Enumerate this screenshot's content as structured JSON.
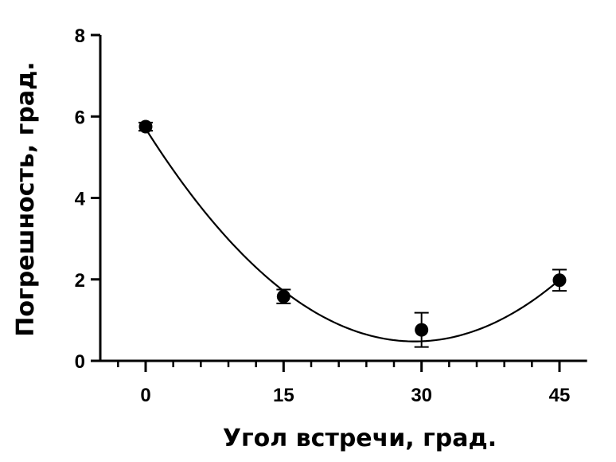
{
  "chart_data": {
    "type": "scatter",
    "title": "",
    "xlabel": "Угол встречи, град.",
    "ylabel": "Погрешность, град.",
    "xlim": [
      -5,
      48
    ],
    "ylim": [
      0,
      8
    ],
    "x_ticks": [
      0,
      15,
      30,
      45
    ],
    "x_tick_labels": [
      "0",
      "15",
      "30",
      "45"
    ],
    "x_minor_step": 3,
    "y_ticks": [
      0,
      2,
      4,
      6,
      8
    ],
    "y_tick_labels": [
      "0",
      "2",
      "4",
      "6",
      "8"
    ],
    "grid": false,
    "legend": "none",
    "colors": {
      "marker": "#000000",
      "line": "#000000"
    },
    "series": [
      {
        "points": [
          {
            "x": 0,
            "y": 5.75,
            "err": 0.1
          },
          {
            "x": 15,
            "y": 1.58,
            "err": 0.17
          },
          {
            "x": 30,
            "y": 0.76,
            "err": 0.42
          },
          {
            "x": 45,
            "y": 1.98,
            "err": 0.26
          }
        ],
        "fit": {
          "type": "polynomial",
          "coefficients": [
            5.7,
            -0.357,
            0.0061
          ]
        }
      }
    ]
  }
}
